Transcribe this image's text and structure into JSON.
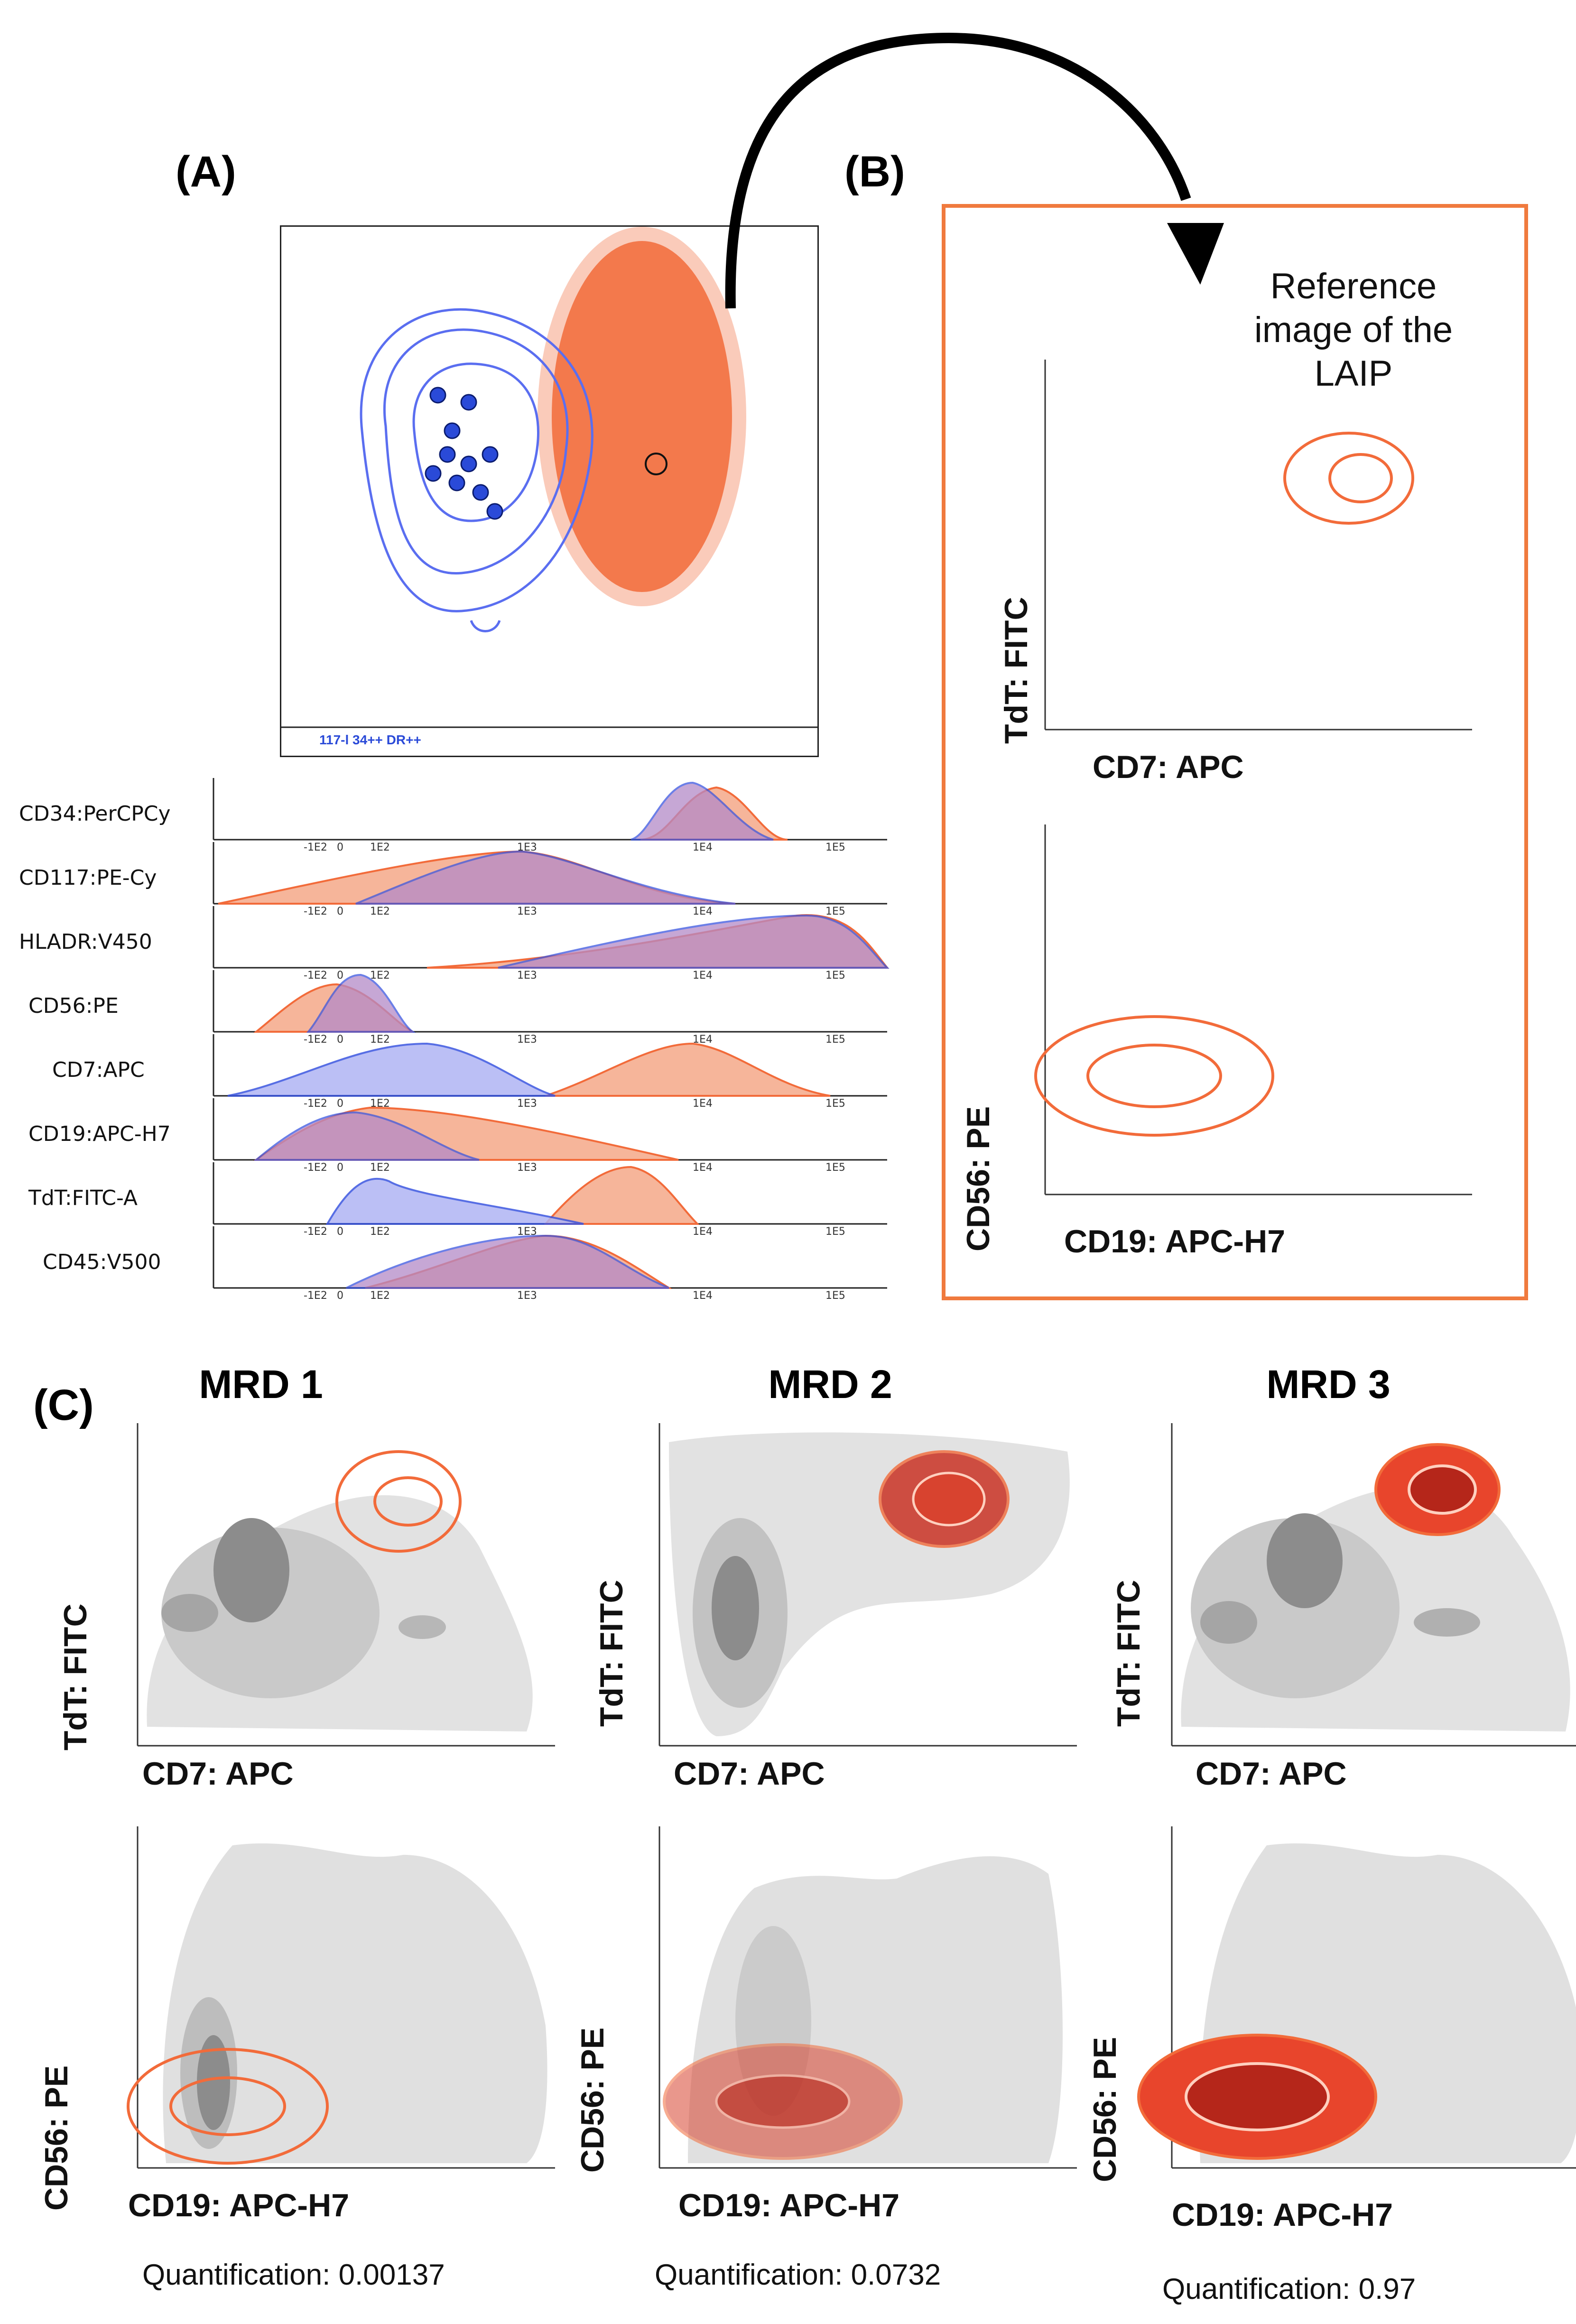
{
  "panels": {
    "A": {
      "letter": "(A)"
    },
    "B": {
      "letter": "(B)",
      "reference_text_1": "Reference",
      "reference_text_2": "image of the",
      "reference_text_3": "LAIP"
    },
    "C": {
      "letter": "(C)"
    }
  },
  "panelA": {
    "gate_label": "117-l 34++ DR++",
    "histograms": [
      {
        "label": "CD34:PerCPCy"
      },
      {
        "label": "CD117:PE-Cy"
      },
      {
        "label": "HLADR:V450"
      },
      {
        "label": "CD56:PE"
      },
      {
        "label": "CD7:APC"
      },
      {
        "label": "CD19:APC-H7"
      },
      {
        "label": "TdT:FITC-A"
      },
      {
        "label": "CD45:V500"
      }
    ],
    "tick_labels": [
      "-1E2",
      "0",
      "1E2",
      "1E3",
      "1E4",
      "1E5"
    ]
  },
  "panelB": {
    "plot1": {
      "xlabel": "CD7: APC",
      "ylabel": "TdT: FITC"
    },
    "plot2": {
      "xlabel": "CD19: APC-H7",
      "ylabel": "CD56: PE"
    }
  },
  "panelC": {
    "columns": [
      {
        "title": "MRD 1",
        "top_xlabel": "CD7: APC",
        "top_ylabel": "TdT: FITC",
        "bottom_xlabel": "CD19: APC-H7",
        "bottom_ylabel": "CD56: PE",
        "quant_label": "Quantification: 0.00137"
      },
      {
        "title": "MRD 2",
        "top_xlabel": "CD7: APC",
        "top_ylabel": "TdT: FITC",
        "bottom_xlabel": "CD19: APC-H7",
        "bottom_ylabel": "CD56: PE",
        "quant_label": "Quantification: 0.0732"
      },
      {
        "title": "MRD 3",
        "top_xlabel": "CD7: APC",
        "top_ylabel": "TdT: FITC",
        "bottom_xlabel": "CD19: APC-H7",
        "bottom_ylabel": "CD56: PE",
        "quant_label": "Quantification: 0.97"
      }
    ]
  },
  "colors": {
    "orange": "#f26b3a",
    "blue": "#3a55e0",
    "purple": "#b48ac8",
    "grey": "#cfcfcf",
    "dark_red": "#c8281a"
  }
}
